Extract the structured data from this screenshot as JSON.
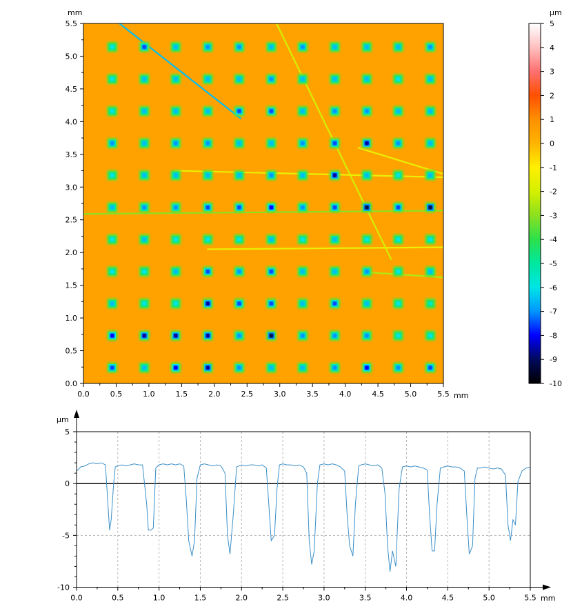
{
  "chart_data": [
    {
      "type": "heatmap",
      "title": "",
      "xlabel": "mm",
      "ylabel": "mm",
      "xlim": [
        0,
        5.5
      ],
      "ylim": [
        0,
        5.5
      ],
      "x_ticks": [
        "0.0",
        "0.5",
        "1.0",
        "1.5",
        "2.0",
        "2.5",
        "3.0",
        "3.5",
        "4.0",
        "4.5",
        "5.0",
        "5.5"
      ],
      "y_ticks": [
        "0.0",
        "0.5",
        "1.0",
        "1.5",
        "2.0",
        "2.5",
        "3.0",
        "3.5",
        "4.0",
        "4.5",
        "5.0",
        "5.5"
      ],
      "background_value": 0.5,
      "pit_grid": {
        "x": [
          0.44,
          0.93,
          1.41,
          1.9,
          2.38,
          2.87,
          3.35,
          3.84,
          4.33,
          4.81,
          5.3
        ],
        "y": [
          0.24,
          0.73,
          1.22,
          1.71,
          2.2,
          2.69,
          3.18,
          3.67,
          4.16,
          4.65,
          5.14
        ],
        "min_depth": [
          [
            -7.5,
            -6.5,
            -8.0,
            -8.5,
            -7.0,
            -6.5,
            -6.5,
            -7.0,
            -8.0,
            -7.0,
            -7.5
          ],
          [
            -8.0,
            -8.5,
            -8.5,
            -8.5,
            -7.0,
            -9.0,
            -7.0,
            -7.0,
            -7.0,
            -6.0,
            -6.0
          ],
          [
            -6.5,
            -6.0,
            -6.0,
            -8.5,
            -7.5,
            -7.5,
            -6.5,
            -7.5,
            -6.5,
            -6.0,
            -5.5
          ],
          [
            -6.0,
            -6.0,
            -6.5,
            -7.5,
            -7.0,
            -7.5,
            -6.5,
            -6.5,
            -7.0,
            -6.0,
            -6.5
          ],
          [
            -6.0,
            -6.5,
            -6.0,
            -6.0,
            -6.0,
            -6.5,
            -6.0,
            -6.5,
            -6.0,
            -6.0,
            -6.0
          ],
          [
            -6.5,
            -7.0,
            -7.0,
            -7.5,
            -7.5,
            -8.0,
            -7.0,
            -7.5,
            -9.0,
            -7.5,
            -9.0
          ],
          [
            -6.0,
            -6.5,
            -6.5,
            -6.5,
            -6.5,
            -7.0,
            -6.5,
            -8.5,
            -6.5,
            -6.0,
            -6.5
          ],
          [
            -7.0,
            -6.5,
            -7.0,
            -7.0,
            -6.5,
            -6.5,
            -7.0,
            -7.5,
            -8.5,
            -7.0,
            -6.5
          ],
          [
            -6.0,
            -6.5,
            -6.5,
            -6.5,
            -7.5,
            -7.5,
            -6.5,
            -7.0,
            -7.0,
            -6.5,
            -6.5
          ],
          [
            -6.0,
            -6.5,
            -6.5,
            -6.5,
            -6.5,
            -7.0,
            -6.5,
            -6.5,
            -6.5,
            -6.0,
            -6.5
          ],
          [
            -6.0,
            -7.5,
            -6.5,
            -7.0,
            -7.0,
            -6.5,
            -7.0,
            -6.5,
            -6.5,
            -6.5,
            -7.0
          ]
        ]
      },
      "scratches": [
        {
          "x": [
            0.55,
            2.4
          ],
          "y": [
            5.5,
            4.05
          ],
          "value": -6.5
        },
        {
          "x": [
            2.95,
            4.7
          ],
          "y": [
            5.5,
            1.9
          ],
          "value": -2.0
        },
        {
          "x": [
            0.0,
            5.5
          ],
          "y": [
            2.59,
            2.64
          ],
          "value": -3.0
        },
        {
          "x": [
            1.9,
            5.5
          ],
          "y": [
            2.05,
            2.08
          ],
          "value": -1.5
        },
        {
          "x": [
            1.4,
            5.5
          ],
          "y": [
            3.25,
            3.15
          ],
          "value": -1.5
        },
        {
          "x": [
            4.3,
            5.5
          ],
          "y": [
            1.7,
            1.62
          ],
          "value": -2.5
        },
        {
          "x": [
            4.2,
            5.5
          ],
          "y": [
            3.6,
            3.2
          ],
          "value": -1.5
        }
      ],
      "colorbar": {
        "unit": "µm",
        "min": -10,
        "max": 5,
        "ticks": [
          "5",
          "4",
          "3",
          "2",
          "1",
          "0",
          "-1",
          "-2",
          "-3",
          "-4",
          "-5",
          "-6",
          "-7",
          "-8",
          "-9",
          "-10"
        ],
        "stops": [
          {
            "value": -10,
            "color": "#000000"
          },
          {
            "value": -9,
            "color": "#000a5c"
          },
          {
            "value": -8,
            "color": "#0000ff"
          },
          {
            "value": -7,
            "color": "#0096ff"
          },
          {
            "value": -6,
            "color": "#00e6e6"
          },
          {
            "value": -5,
            "color": "#00e8a0"
          },
          {
            "value": -4,
            "color": "#2be04b"
          },
          {
            "value": -3,
            "color": "#8ce020"
          },
          {
            "value": -2,
            "color": "#d4f000"
          },
          {
            "value": -1,
            "color": "#fff000"
          },
          {
            "value": 0,
            "color": "#ffb400"
          },
          {
            "value": 1,
            "color": "#ff9000"
          },
          {
            "value": 2,
            "color": "#ff5000"
          },
          {
            "value": 3,
            "color": "#ff7070"
          },
          {
            "value": 4,
            "color": "#ffc0c0"
          },
          {
            "value": 5,
            "color": "#ffffff"
          }
        ]
      }
    },
    {
      "type": "line",
      "title": "",
      "xlabel": "mm",
      "ylabel": "µm",
      "xlim": [
        0,
        5.5
      ],
      "ylim": [
        -10,
        5
      ],
      "grid": true,
      "x_ticks": [
        "0.0",
        "0.5",
        "1.0",
        "1.5",
        "2.0",
        "2.5",
        "3.0",
        "3.5",
        "4.0",
        "4.5",
        "5.0",
        "5.5"
      ],
      "y_ticks": [
        "5",
        "0",
        "-5",
        "-10"
      ],
      "color": "#3a8fc8",
      "series": [
        {
          "x": [
            0.0,
            0.05,
            0.1,
            0.15,
            0.2,
            0.25,
            0.3,
            0.35,
            0.38,
            0.4,
            0.42,
            0.45,
            0.47,
            0.5,
            0.55,
            0.6,
            0.65,
            0.7,
            0.75,
            0.8,
            0.85,
            0.87,
            0.9,
            0.93,
            0.96,
            1.0,
            1.05,
            1.1,
            1.15,
            1.2,
            1.25,
            1.3,
            1.33,
            1.36,
            1.4,
            1.43,
            1.46,
            1.5,
            1.55,
            1.6,
            1.65,
            1.7,
            1.75,
            1.8,
            1.83,
            1.86,
            1.9,
            1.94,
            2.0,
            2.05,
            2.1,
            2.15,
            2.2,
            2.25,
            2.3,
            2.33,
            2.36,
            2.4,
            2.43,
            2.46,
            2.5,
            2.55,
            2.6,
            2.65,
            2.7,
            2.75,
            2.79,
            2.82,
            2.85,
            2.88,
            2.92,
            2.95,
            3.0,
            3.05,
            3.1,
            3.15,
            3.2,
            3.25,
            3.28,
            3.31,
            3.35,
            3.38,
            3.42,
            3.45,
            3.5,
            3.55,
            3.6,
            3.65,
            3.7,
            3.74,
            3.77,
            3.8,
            3.83,
            3.87,
            3.91,
            3.95,
            4.0,
            4.05,
            4.1,
            4.15,
            4.2,
            4.25,
            4.28,
            4.31,
            4.34,
            4.37,
            4.41,
            4.45,
            4.5,
            4.55,
            4.6,
            4.65,
            4.7,
            4.73,
            4.76,
            4.8,
            4.83,
            4.86,
            4.9,
            4.95,
            5.0,
            5.05,
            5.1,
            5.15,
            5.2,
            5.23,
            5.26,
            5.29,
            5.32,
            5.35,
            5.4,
            5.45,
            5.5
          ],
          "y": [
            1.2,
            1.6,
            1.7,
            1.9,
            2.0,
            1.9,
            2.0,
            1.8,
            -2.0,
            -4.5,
            -3.5,
            0.0,
            1.6,
            1.7,
            1.8,
            1.7,
            1.8,
            1.9,
            1.8,
            1.8,
            -2.0,
            -4.5,
            -4.5,
            -4.3,
            1.5,
            1.8,
            1.9,
            1.8,
            1.9,
            1.8,
            1.9,
            1.7,
            -1.5,
            -5.5,
            -7.0,
            -5.5,
            0.5,
            1.8,
            1.9,
            1.8,
            1.7,
            1.8,
            1.7,
            1.0,
            -5.0,
            -6.8,
            -3.0,
            1.6,
            1.8,
            1.7,
            1.8,
            1.8,
            1.7,
            1.8,
            1.5,
            -2.0,
            -5.5,
            -5.0,
            -0.5,
            1.8,
            1.9,
            1.8,
            1.8,
            1.7,
            1.8,
            1.6,
            1.0,
            -5.5,
            -7.8,
            -6.5,
            0.0,
            1.8,
            1.9,
            1.8,
            1.9,
            1.8,
            1.6,
            1.2,
            -3.0,
            -6.0,
            -7.0,
            -2.0,
            1.7,
            1.8,
            1.9,
            1.8,
            1.7,
            1.8,
            1.5,
            -1.0,
            -6.0,
            -8.5,
            -6.5,
            -8.0,
            -0.5,
            1.6,
            1.7,
            1.6,
            1.7,
            1.6,
            1.5,
            1.3,
            -3.0,
            -6.5,
            -6.5,
            -2.0,
            1.5,
            1.6,
            1.7,
            1.6,
            1.6,
            1.5,
            1.2,
            -3.0,
            -6.8,
            -6.0,
            0.5,
            1.5,
            1.5,
            1.6,
            1.5,
            1.4,
            1.5,
            1.4,
            0.8,
            -4.0,
            -5.5,
            -3.5,
            -4.0,
            0.2,
            1.2,
            1.5,
            1.6
          ]
        }
      ]
    }
  ]
}
